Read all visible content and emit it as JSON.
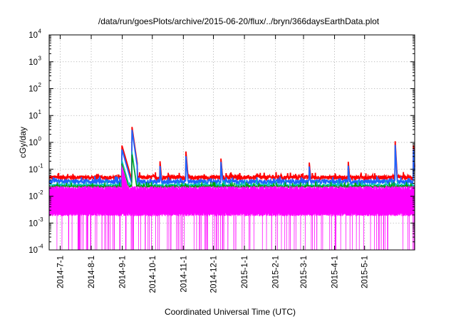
{
  "chart_data": {
    "type": "line",
    "title": "/data/run/goesPlots/archive/2015-06-20/flux/../bryn/366daysEarthData.plot",
    "xlabel": "Coordinated Universal Time (UTC)",
    "ylabel": "cGy/day",
    "yscale": "log",
    "ylim": [
      0.0001,
      10000
    ],
    "ytick_labels": [
      {
        "base": "10",
        "exp": "-4",
        "value": 0.0001
      },
      {
        "base": "10",
        "exp": "-3",
        "value": 0.001
      },
      {
        "base": "10",
        "exp": "-2",
        "value": 0.01
      },
      {
        "base": "10",
        "exp": "-1",
        "value": 0.1
      },
      {
        "base": "10",
        "exp": "0",
        "value": 1
      },
      {
        "base": "10",
        "exp": "1",
        "value": 10
      },
      {
        "base": "10",
        "exp": "2",
        "value": 100
      },
      {
        "base": "10",
        "exp": "3",
        "value": 1000
      },
      {
        "base": "10",
        "exp": "4",
        "value": 10000
      }
    ],
    "xlim": [
      "2014-06-20",
      "2015-06-20"
    ],
    "x_ticks": [
      "2014-7-1",
      "2014-8-1",
      "2014-9-1",
      "2014-10-1",
      "2014-11-1",
      "2014-12-1",
      "2015-1-1",
      "2015-2-1",
      "2015-3-1",
      "2015-4-1",
      "2015-5-1"
    ],
    "grid": true,
    "series": [
      {
        "color": "#ff0000",
        "baseline": 0.05,
        "noise": 0.12,
        "events": [
          [
            "2014-09-01",
            0.7,
            10
          ],
          [
            "2014-09-11",
            3.2,
            5
          ],
          [
            "2014-10-09",
            0.15,
            3
          ],
          [
            "2014-11-04",
            0.3,
            3
          ],
          [
            "2014-12-09",
            0.16,
            3
          ],
          [
            "2015-03-07",
            0.14,
            3
          ],
          [
            "2015-04-15",
            0.14,
            3
          ],
          [
            "2015-06-01",
            0.55,
            2
          ],
          [
            "2015-06-19",
            0.55,
            2
          ]
        ]
      },
      {
        "color": "#1e64ff",
        "baseline": 0.035,
        "noise": 0.12,
        "events": [
          [
            "2014-09-01",
            0.5,
            10
          ],
          [
            "2014-09-11",
            2.5,
            5
          ],
          [
            "2014-10-09",
            0.1,
            3
          ],
          [
            "2014-11-04",
            0.2,
            3
          ],
          [
            "2014-12-09",
            0.12,
            3
          ],
          [
            "2015-03-07",
            0.1,
            3
          ],
          [
            "2015-04-15",
            0.1,
            3
          ],
          [
            "2015-06-01",
            0.4,
            2
          ],
          [
            "2015-06-19",
            0.4,
            2
          ]
        ]
      },
      {
        "color": "#00c0c0",
        "baseline": 0.026,
        "noise": 0.08,
        "events": [
          [
            "2014-09-01",
            0.2,
            10
          ],
          [
            "2014-09-11",
            0.4,
            5
          ]
        ]
      },
      {
        "color": "#00a000",
        "baseline": 0.023,
        "noise": 0.06,
        "events": [
          [
            "2014-09-01",
            0.15,
            10
          ],
          [
            "2014-09-11",
            0.3,
            5
          ]
        ]
      },
      {
        "color": "#ff00ff",
        "baseline": 0.02,
        "low": 0.002,
        "dropout": 0.0001,
        "noise": 0,
        "events": [
          [
            "2014-09-01",
            0.12,
            10
          ]
        ]
      }
    ]
  }
}
